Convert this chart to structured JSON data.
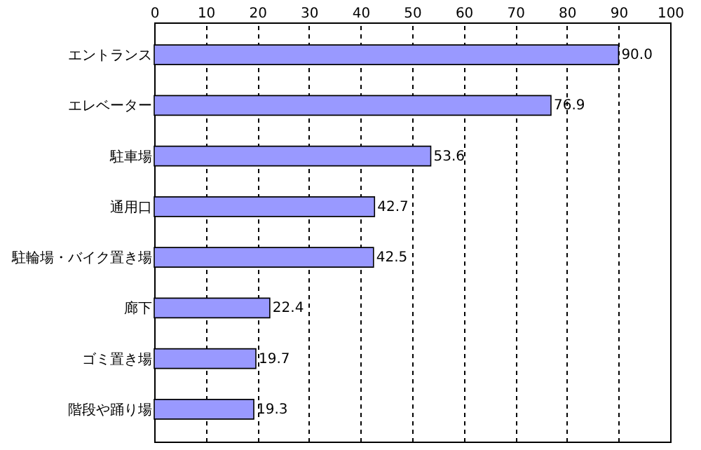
{
  "chart_data": {
    "type": "bar",
    "orientation": "horizontal",
    "categories": [
      "エントランス",
      "エレベーター",
      "駐車場",
      "通用口",
      "駐輪場・バイク置き場",
      "廊下",
      "ゴミ置き場",
      "階段や踊り場"
    ],
    "values": [
      90.0,
      76.9,
      53.6,
      42.7,
      42.5,
      22.4,
      19.7,
      19.3
    ],
    "color": "#9999ff",
    "xlim": [
      0,
      100
    ],
    "xticks": [
      0,
      10,
      20,
      30,
      40,
      50,
      60,
      70,
      80,
      90,
      100
    ],
    "grid": "x",
    "value_labels": [
      "90.0",
      "76.9",
      "53.6",
      "42.7",
      "42.5",
      "22.4",
      "19.7",
      "19.3"
    ]
  }
}
